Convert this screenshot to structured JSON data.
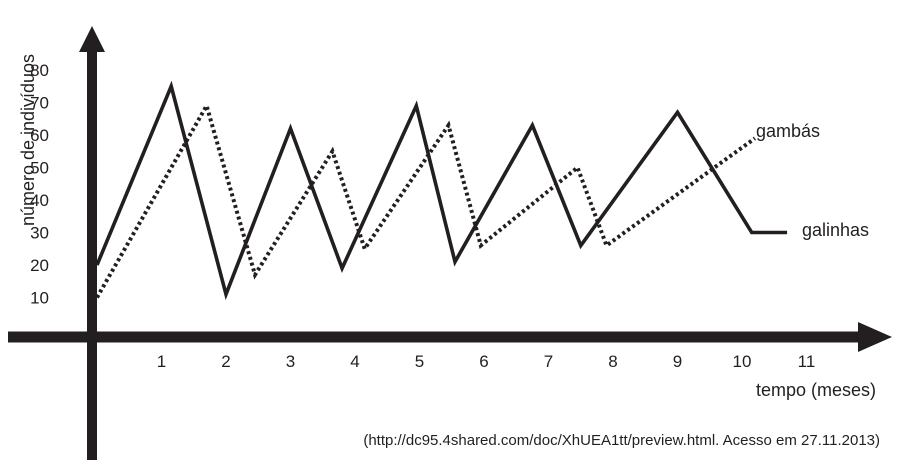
{
  "chart_data": {
    "type": "line",
    "title": "",
    "xlabel": "tempo (meses)",
    "ylabel": "número de indivíduos",
    "x_ticks": [
      "1",
      "2",
      "3",
      "4",
      "5",
      "6",
      "7",
      "8",
      "9",
      "10",
      "11"
    ],
    "y_ticks": [
      "10",
      "20",
      "30",
      "40",
      "50",
      "60",
      "70",
      "80"
    ],
    "xlim": [
      0,
      11.5
    ],
    "ylim": [
      0,
      80
    ],
    "grid": false,
    "legend": "direct labels at line ends (right)",
    "series": [
      {
        "name": "galinhas",
        "style": "solid",
        "color": "#231f20",
        "points": [
          [
            0,
            20
          ],
          [
            1.15,
            75
          ],
          [
            2.0,
            11
          ],
          [
            3.0,
            62
          ],
          [
            3.8,
            19
          ],
          [
            4.95,
            69
          ],
          [
            5.55,
            21
          ],
          [
            6.75,
            63
          ],
          [
            7.5,
            26
          ],
          [
            9.0,
            67
          ],
          [
            10.15,
            30
          ],
          [
            10.7,
            30
          ]
        ]
      },
      {
        "name": "gambás",
        "style": "dotted",
        "color": "#231f20",
        "points": [
          [
            0,
            10
          ],
          [
            1.7,
            69
          ],
          [
            2.45,
            17
          ],
          [
            3.65,
            55
          ],
          [
            4.15,
            25
          ],
          [
            5.45,
            63
          ],
          [
            5.95,
            26
          ],
          [
            7.45,
            50
          ],
          [
            7.9,
            26
          ],
          [
            10.2,
            59
          ]
        ]
      }
    ],
    "source_note": "(http://dc95.4shared.com/doc/XhUEA1tt/preview.html. Acesso em 27.11.2013)"
  }
}
